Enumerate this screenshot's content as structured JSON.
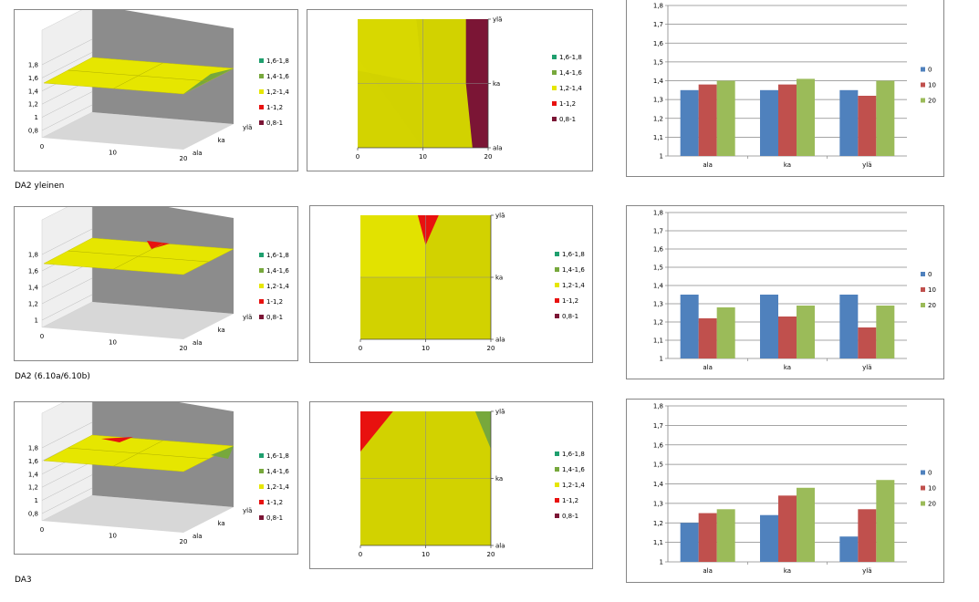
{
  "colors": {
    "band_16_18": "#1f9f6e",
    "band_14_16": "#77a83c",
    "band_12_14": "#e6e600",
    "band_1_12": "#e8110f",
    "band_08_1": "#7b1535",
    "wall": "#8c8c8c",
    "floor": "#d7d7d7",
    "plan_fill": "#d2d200",
    "series_0": "#4f81bd",
    "series_10": "#c0504d",
    "series_20": "#9bbb59"
  },
  "legend_3d": [
    "1,6-1,8",
    "1,4-1,6",
    "1,2-1,4",
    "1-1,2",
    "0,8-1"
  ],
  "rows": [
    {
      "caption": "DA2 yleinen",
      "surface3d": {
        "z_ticks": [
          "0,8",
          "1",
          "1,2",
          "1,4",
          "1,6",
          "1,8"
        ],
        "x_ticks": [
          "0",
          "10",
          "20"
        ],
        "y_ticks": [
          "ala",
          "ka",
          "ylä"
        ]
      },
      "contour": {
        "x_ticks": [
          "0",
          "10",
          "20"
        ],
        "y_ticks": [
          "ala",
          "ka",
          "ylä"
        ]
      },
      "bar": {
        "y_ticks": [
          "1",
          "1,1",
          "1,2",
          "1,3",
          "1,4",
          "1,5",
          "1,6",
          "1,7",
          "1,8"
        ],
        "categories": [
          "ala",
          "ka",
          "ylä"
        ],
        "legend": [
          "0",
          "10",
          "20"
        ]
      }
    },
    {
      "caption": "DA2 (6.10a/6.10b)",
      "surface3d": {
        "z_ticks": [
          "1",
          "1,2",
          "1,4",
          "1,6",
          "1,8"
        ],
        "x_ticks": [
          "0",
          "10",
          "20"
        ],
        "y_ticks": [
          "ala",
          "ka",
          "ylä"
        ]
      },
      "contour": {
        "x_ticks": [
          "0",
          "10",
          "20"
        ],
        "y_ticks": [
          "ala",
          "ka",
          "ylä"
        ]
      },
      "bar": {
        "y_ticks": [
          "1",
          "1,1",
          "1,2",
          "1,3",
          "1,4",
          "1,5",
          "1,6",
          "1,7",
          "1,8"
        ],
        "categories": [
          "ala",
          "ka",
          "ylä"
        ],
        "legend": [
          "0",
          "10",
          "20"
        ]
      }
    },
    {
      "caption": "DA3",
      "surface3d": {
        "z_ticks": [
          "0,8",
          "1",
          "1,2",
          "1,4",
          "1,6",
          "1,8"
        ],
        "x_ticks": [
          "0",
          "10",
          "20"
        ],
        "y_ticks": [
          "ala",
          "ka",
          "ylä"
        ]
      },
      "contour": {
        "x_ticks": [
          "0",
          "10",
          "20"
        ],
        "y_ticks": [
          "ala",
          "ka",
          "ylä"
        ]
      },
      "bar": {
        "y_ticks": [
          "1",
          "1,1",
          "1,2",
          "1,3",
          "1,4",
          "1,5",
          "1,6",
          "1,7",
          "1,8"
        ],
        "categories": [
          "ala",
          "ka",
          "ylä"
        ],
        "legend": [
          "0",
          "10",
          "20"
        ]
      }
    }
  ],
  "chart_data": [
    {
      "type": "bar",
      "categories": [
        "ala",
        "ka",
        "ylä"
      ],
      "series": [
        {
          "name": "0",
          "values": [
            1.35,
            1.35,
            1.35
          ]
        },
        {
          "name": "10",
          "values": [
            1.38,
            1.38,
            1.32
          ]
        },
        {
          "name": "20",
          "values": [
            1.4,
            1.41,
            1.4
          ]
        }
      ],
      "ylim": [
        1,
        1.8
      ],
      "grid": true,
      "legend": "right"
    },
    {
      "type": "bar",
      "categories": [
        "ala",
        "ka",
        "ylä"
      ],
      "series": [
        {
          "name": "0",
          "values": [
            1.35,
            1.35,
            1.35
          ]
        },
        {
          "name": "10",
          "values": [
            1.22,
            1.23,
            1.17
          ]
        },
        {
          "name": "20",
          "values": [
            1.28,
            1.29,
            1.29
          ]
        }
      ],
      "ylim": [
        1,
        1.8
      ],
      "grid": true,
      "legend": "right"
    },
    {
      "type": "bar",
      "categories": [
        "ala",
        "ka",
        "ylä"
      ],
      "series": [
        {
          "name": "0",
          "values": [
            1.2,
            1.24,
            1.13
          ]
        },
        {
          "name": "10",
          "values": [
            1.25,
            1.34,
            1.27
          ]
        },
        {
          "name": "20",
          "values": [
            1.27,
            1.38,
            1.42
          ]
        }
      ],
      "ylim": [
        1,
        1.8
      ],
      "grid": true,
      "legend": "right"
    }
  ]
}
